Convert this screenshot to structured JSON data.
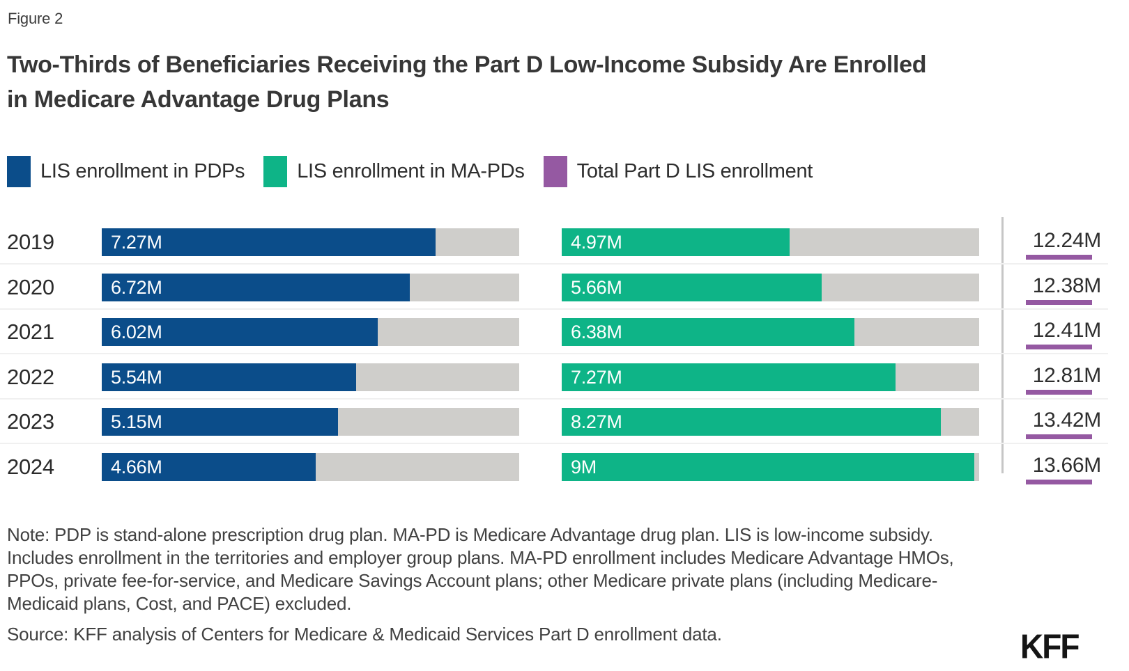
{
  "figure_label": "Figure 2",
  "title_line1": "Two-Thirds of Beneficiaries Receiving the Part D Low-Income Subsidy Are Enrolled",
  "title_line2": "in Medicare Advantage Drug Plans",
  "title": "Two-Thirds of Beneficiaries Receiving the Part D Low-Income Subsidy Are Enrolled in Medicare Advantage Drug Plans",
  "legend": [
    {
      "label": "LIS enrollment in PDPs",
      "color": "#0b4d8a"
    },
    {
      "label": "LIS enrollment in MA-PDs",
      "color": "#0eb487"
    },
    {
      "label": "Total Part D LIS enrollment",
      "color": "#9559a2"
    }
  ],
  "chart_data": {
    "type": "bar",
    "orientation": "horizontal",
    "unit": "millions of beneficiaries",
    "categories": [
      "2019",
      "2020",
      "2021",
      "2022",
      "2023",
      "2024"
    ],
    "series": [
      {
        "name": "LIS enrollment in PDPs",
        "color": "#0b4d8a",
        "values": [
          7.27,
          6.72,
          6.02,
          5.54,
          5.15,
          4.66
        ],
        "labels": [
          "7.27M",
          "6.72M",
          "6.02M",
          "5.54M",
          "5.15M",
          "4.66M"
        ]
      },
      {
        "name": "LIS enrollment in MA-PDs",
        "color": "#0eb487",
        "values": [
          4.97,
          5.66,
          6.38,
          7.27,
          8.27,
          9.0
        ],
        "labels": [
          "4.97M",
          "5.66M",
          "6.38M",
          "7.27M",
          "8.27M",
          "9M"
        ]
      },
      {
        "name": "Total Part D LIS enrollment",
        "color": "#9559a2",
        "values": [
          12.24,
          12.38,
          12.41,
          12.81,
          13.42,
          13.66
        ],
        "labels": [
          "12.24M",
          "12.38M",
          "12.41M",
          "12.81M",
          "13.42M",
          "13.66M"
        ]
      }
    ],
    "bar_scale_max": 9.1,
    "track_color": "#cfcecb",
    "grid": false,
    "legend_position": "top"
  },
  "note": "Note: PDP is stand-alone prescription drug plan. MA-PD is Medicare Advantage drug plan. LIS is low-income subsidy. Includes enrollment in the territories and employer group plans. MA-PD enrollment includes Medicare Advantage HMOs, PPOs, private fee-for-service, and Medicare Savings Account plans; other Medicare private plans (including Medicare-Medicaid plans, Cost, and PACE) excluded.",
  "source": "Source: KFF analysis of Centers for Medicare & Medicaid Services Part D enrollment data.",
  "logo_text": "KFF"
}
